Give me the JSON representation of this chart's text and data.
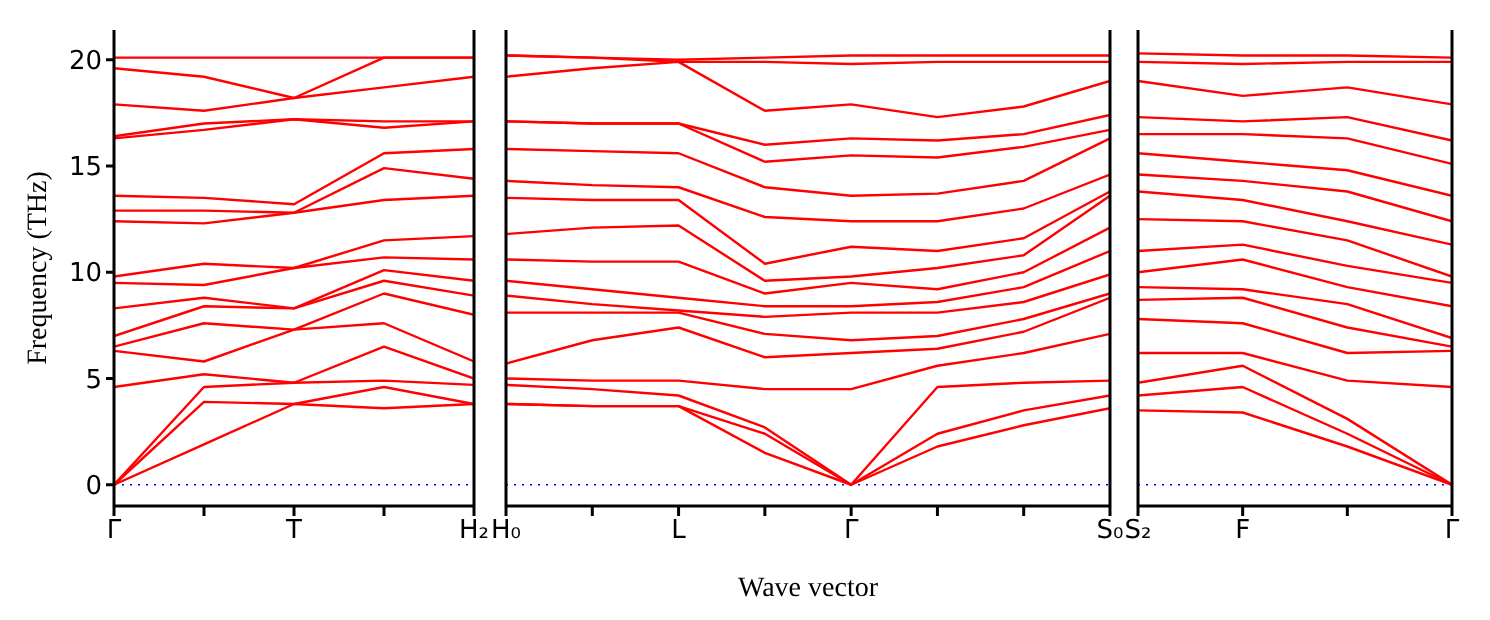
{
  "chart_data": [
    {
      "type": "line",
      "ylabel": "Frequency (THz)",
      "categories": [
        "Γ",
        null,
        "T",
        null,
        "H₂"
      ],
      "ylim": [
        -1,
        21.4
      ],
      "yticks": [
        0,
        5,
        10,
        15,
        20
      ],
      "ref_lines": [
        {
          "axis": "y",
          "value": 0,
          "color": "#0000ff",
          "line_style": "dotted"
        }
      ],
      "series": [
        {
          "color": "#ff0000",
          "values": [
            0,
            1.9,
            3.8,
            3.6,
            3.8
          ]
        },
        {
          "color": "#ff0000",
          "values": [
            0,
            3.9,
            3.8,
            4.6,
            3.8
          ]
        },
        {
          "color": "#ff0000",
          "values": [
            0,
            4.6,
            4.8,
            4.9,
            4.7
          ]
        },
        {
          "color": "#ff0000",
          "values": [
            4.6,
            5.2,
            4.8,
            6.5,
            5.0
          ]
        },
        {
          "color": "#ff0000",
          "values": [
            6.3,
            5.8,
            7.3,
            7.6,
            5.8
          ]
        },
        {
          "color": "#ff0000",
          "values": [
            6.5,
            7.6,
            7.3,
            9.0,
            8.0
          ]
        },
        {
          "color": "#ff0000",
          "values": [
            7.0,
            8.4,
            8.3,
            9.6,
            8.9
          ]
        },
        {
          "color": "#ff0000",
          "values": [
            8.3,
            8.8,
            8.3,
            10.1,
            9.6
          ]
        },
        {
          "color": "#ff0000",
          "values": [
            9.5,
            9.4,
            10.2,
            10.7,
            10.6
          ]
        },
        {
          "color": "#ff0000",
          "values": [
            9.8,
            10.4,
            10.2,
            11.5,
            11.7
          ]
        },
        {
          "color": "#ff0000",
          "values": [
            12.4,
            12.3,
            12.8,
            13.4,
            13.6
          ]
        },
        {
          "color": "#ff0000",
          "values": [
            12.9,
            12.9,
            12.8,
            14.9,
            14.4
          ]
        },
        {
          "color": "#ff0000",
          "values": [
            13.6,
            13.5,
            13.2,
            15.6,
            15.8
          ]
        },
        {
          "color": "#ff0000",
          "values": [
            16.3,
            16.7,
            17.2,
            16.8,
            17.1
          ]
        },
        {
          "color": "#ff0000",
          "values": [
            16.4,
            17.0,
            17.2,
            17.1,
            17.1
          ]
        },
        {
          "color": "#ff0000",
          "values": [
            17.9,
            17.6,
            18.2,
            18.7,
            19.2
          ]
        },
        {
          "color": "#ff0000",
          "values": [
            19.6,
            19.2,
            18.2,
            20.1,
            20.1
          ]
        },
        {
          "color": "#ff0000",
          "values": [
            20.1,
            20.1,
            20.1,
            20.1,
            20.1
          ]
        }
      ]
    },
    {
      "type": "line",
      "xlabel": "Wave vector",
      "tick_labels": "x",
      "categories": [
        "H₀",
        null,
        "L",
        null,
        "Γ",
        null,
        null,
        "S₀"
      ],
      "ylim": [
        -1,
        21.4
      ],
      "yticks": [
        0,
        5,
        10,
        15,
        20
      ],
      "ref_lines": [
        {
          "axis": "y",
          "value": 0,
          "color": "#0000ff",
          "line_style": "dotted"
        }
      ],
      "series": [
        {
          "color": "#ff0000",
          "values": [
            3.8,
            3.7,
            3.7,
            1.5,
            0,
            1.8,
            2.8,
            3.6
          ]
        },
        {
          "color": "#ff0000",
          "values": [
            3.8,
            3.7,
            3.7,
            2.4,
            0,
            2.4,
            3.5,
            4.2
          ]
        },
        {
          "color": "#ff0000",
          "values": [
            4.7,
            4.5,
            4.2,
            2.7,
            0,
            4.6,
            4.8,
            4.9
          ]
        },
        {
          "color": "#ff0000",
          "values": [
            5.0,
            4.9,
            4.9,
            4.5,
            4.5,
            5.6,
            6.2,
            7.1
          ]
        },
        {
          "color": "#ff0000",
          "values": [
            5.7,
            6.8,
            7.4,
            6.0,
            6.2,
            6.4,
            7.2,
            8.8
          ]
        },
        {
          "color": "#ff0000",
          "values": [
            8.1,
            8.1,
            8.1,
            7.1,
            6.8,
            7.0,
            7.8,
            9.0
          ]
        },
        {
          "color": "#ff0000",
          "values": [
            8.9,
            8.5,
            8.2,
            7.9,
            8.1,
            8.1,
            8.6,
            9.9
          ]
        },
        {
          "color": "#ff0000",
          "values": [
            9.6,
            9.2,
            8.8,
            8.4,
            8.4,
            8.6,
            9.3,
            11.0
          ]
        },
        {
          "color": "#ff0000",
          "values": [
            10.6,
            10.5,
            10.5,
            9.0,
            9.5,
            9.2,
            10.0,
            12.1
          ]
        },
        {
          "color": "#ff0000",
          "values": [
            11.8,
            12.1,
            12.2,
            9.6,
            9.8,
            10.2,
            10.8,
            13.6
          ]
        },
        {
          "color": "#ff0000",
          "values": [
            13.5,
            13.4,
            13.4,
            10.4,
            11.2,
            11.0,
            11.6,
            13.8
          ]
        },
        {
          "color": "#ff0000",
          "values": [
            14.3,
            14.1,
            14.0,
            12.6,
            12.4,
            12.4,
            13.0,
            14.6
          ]
        },
        {
          "color": "#ff0000",
          "values": [
            15.8,
            15.7,
            15.6,
            14.0,
            13.6,
            13.7,
            14.3,
            16.3
          ]
        },
        {
          "color": "#ff0000",
          "values": [
            17.1,
            17.0,
            17.0,
            15.2,
            15.5,
            15.4,
            15.9,
            16.7
          ]
        },
        {
          "color": "#ff0000",
          "values": [
            17.1,
            17.0,
            17.0,
            16.0,
            16.3,
            16.2,
            16.5,
            17.4
          ]
        },
        {
          "color": "#ff0000",
          "values": [
            19.2,
            19.6,
            19.9,
            17.6,
            17.9,
            17.3,
            17.8,
            19.0
          ]
        },
        {
          "color": "#ff0000",
          "values": [
            20.2,
            20.1,
            19.9,
            19.9,
            19.8,
            19.9,
            19.9,
            19.9
          ]
        },
        {
          "color": "#ff0000",
          "values": [
            20.2,
            20.1,
            20.0,
            20.1,
            20.2,
            20.2,
            20.2,
            20.2
          ]
        }
      ]
    },
    {
      "type": "line",
      "tick_labels": "x",
      "categories": [
        "S₂",
        "F",
        null,
        "Γ"
      ],
      "ylim": [
        -1,
        21.4
      ],
      "yticks": [
        0,
        5,
        10,
        15,
        20
      ],
      "ref_lines": [
        {
          "axis": "y",
          "value": 0,
          "color": "#0000ff",
          "line_style": "dotted"
        }
      ],
      "series": [
        {
          "color": "#ff0000",
          "values": [
            3.5,
            3.4,
            1.8,
            0
          ]
        },
        {
          "color": "#ff0000",
          "values": [
            4.2,
            4.6,
            2.4,
            0
          ]
        },
        {
          "color": "#ff0000",
          "values": [
            4.8,
            5.6,
            3.1,
            0
          ]
        },
        {
          "color": "#ff0000",
          "values": [
            6.2,
            6.2,
            4.9,
            4.6
          ]
        },
        {
          "color": "#ff0000",
          "values": [
            7.8,
            7.6,
            6.2,
            6.3
          ]
        },
        {
          "color": "#ff0000",
          "values": [
            8.7,
            8.8,
            7.4,
            6.5
          ]
        },
        {
          "color": "#ff0000",
          "values": [
            9.3,
            9.2,
            8.5,
            6.9
          ]
        },
        {
          "color": "#ff0000",
          "values": [
            10.0,
            10.6,
            9.3,
            8.4
          ]
        },
        {
          "color": "#ff0000",
          "values": [
            11.0,
            11.3,
            10.3,
            9.5
          ]
        },
        {
          "color": "#ff0000",
          "values": [
            12.5,
            12.4,
            11.5,
            9.8
          ]
        },
        {
          "color": "#ff0000",
          "values": [
            13.8,
            13.4,
            12.4,
            11.3
          ]
        },
        {
          "color": "#ff0000",
          "values": [
            14.6,
            14.3,
            13.8,
            12.4
          ]
        },
        {
          "color": "#ff0000",
          "values": [
            15.6,
            15.2,
            14.8,
            13.6
          ]
        },
        {
          "color": "#ff0000",
          "values": [
            16.5,
            16.5,
            16.3,
            15.1
          ]
        },
        {
          "color": "#ff0000",
          "values": [
            17.3,
            17.1,
            17.3,
            16.2
          ]
        },
        {
          "color": "#ff0000",
          "values": [
            19.0,
            18.3,
            18.7,
            17.9
          ]
        },
        {
          "color": "#ff0000",
          "values": [
            19.9,
            19.8,
            19.9,
            19.9
          ]
        },
        {
          "color": "#ff0000",
          "values": [
            20.3,
            20.2,
            20.2,
            20.1
          ]
        }
      ]
    }
  ]
}
